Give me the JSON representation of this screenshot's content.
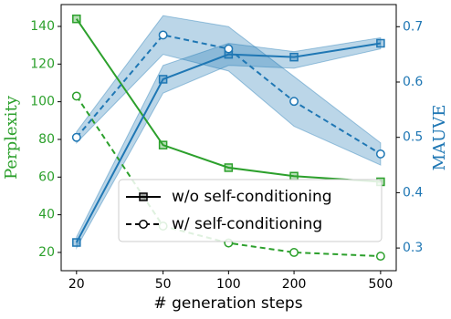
{
  "chart_data": {
    "type": "line",
    "x": [
      20,
      50,
      100,
      200,
      500
    ],
    "xlim": [
      17,
      590
    ],
    "xticks": [
      20,
      50,
      100,
      200,
      500
    ],
    "xscale": "log",
    "xlabel": "# generation steps",
    "ylabel": "Perplexity",
    "ylabel_color": "#2ca02c",
    "ylim": [
      10.3,
      151.6
    ],
    "yticks": [
      20,
      40,
      60,
      80,
      100,
      120,
      140
    ],
    "y2label": "MAUVE",
    "y2label_color": "#1f77b4",
    "y2lim": [
      0.259,
      0.74
    ],
    "y2ticks": [
      0.3,
      0.4,
      0.5,
      0.6,
      0.7
    ],
    "legend_loc": "lower right",
    "series": [
      {
        "name": "w/o self-conditioning",
        "color": "#2ca02c",
        "style": "solid",
        "marker": "square",
        "values": [
          144,
          77,
          65,
          60.5,
          57.5
        ]
      },
      {
        "name": "w/ self-conditioning",
        "color": "#2ca02c",
        "style": "dashed",
        "marker": "circle",
        "values": [
          103,
          34,
          25,
          20,
          18
        ]
      },
      {
        "color": "#1f77b4",
        "style": "solid",
        "marker": "square",
        "axis": "y2",
        "values": [
          0.31,
          0.605,
          0.65,
          0.645,
          0.67
        ],
        "lower": [
          0.3,
          0.58,
          0.63,
          0.625,
          0.66
        ],
        "upper": [
          0.32,
          0.63,
          0.67,
          0.655,
          0.68
        ]
      },
      {
        "color": "#1f77b4",
        "style": "dashed",
        "marker": "circle",
        "axis": "y2",
        "values": [
          0.5,
          0.685,
          0.66,
          0.565,
          0.47
        ],
        "lower": [
          0.49,
          0.65,
          0.62,
          0.52,
          0.45
        ],
        "upper": [
          0.51,
          0.72,
          0.7,
          0.61,
          0.49
        ]
      }
    ]
  }
}
